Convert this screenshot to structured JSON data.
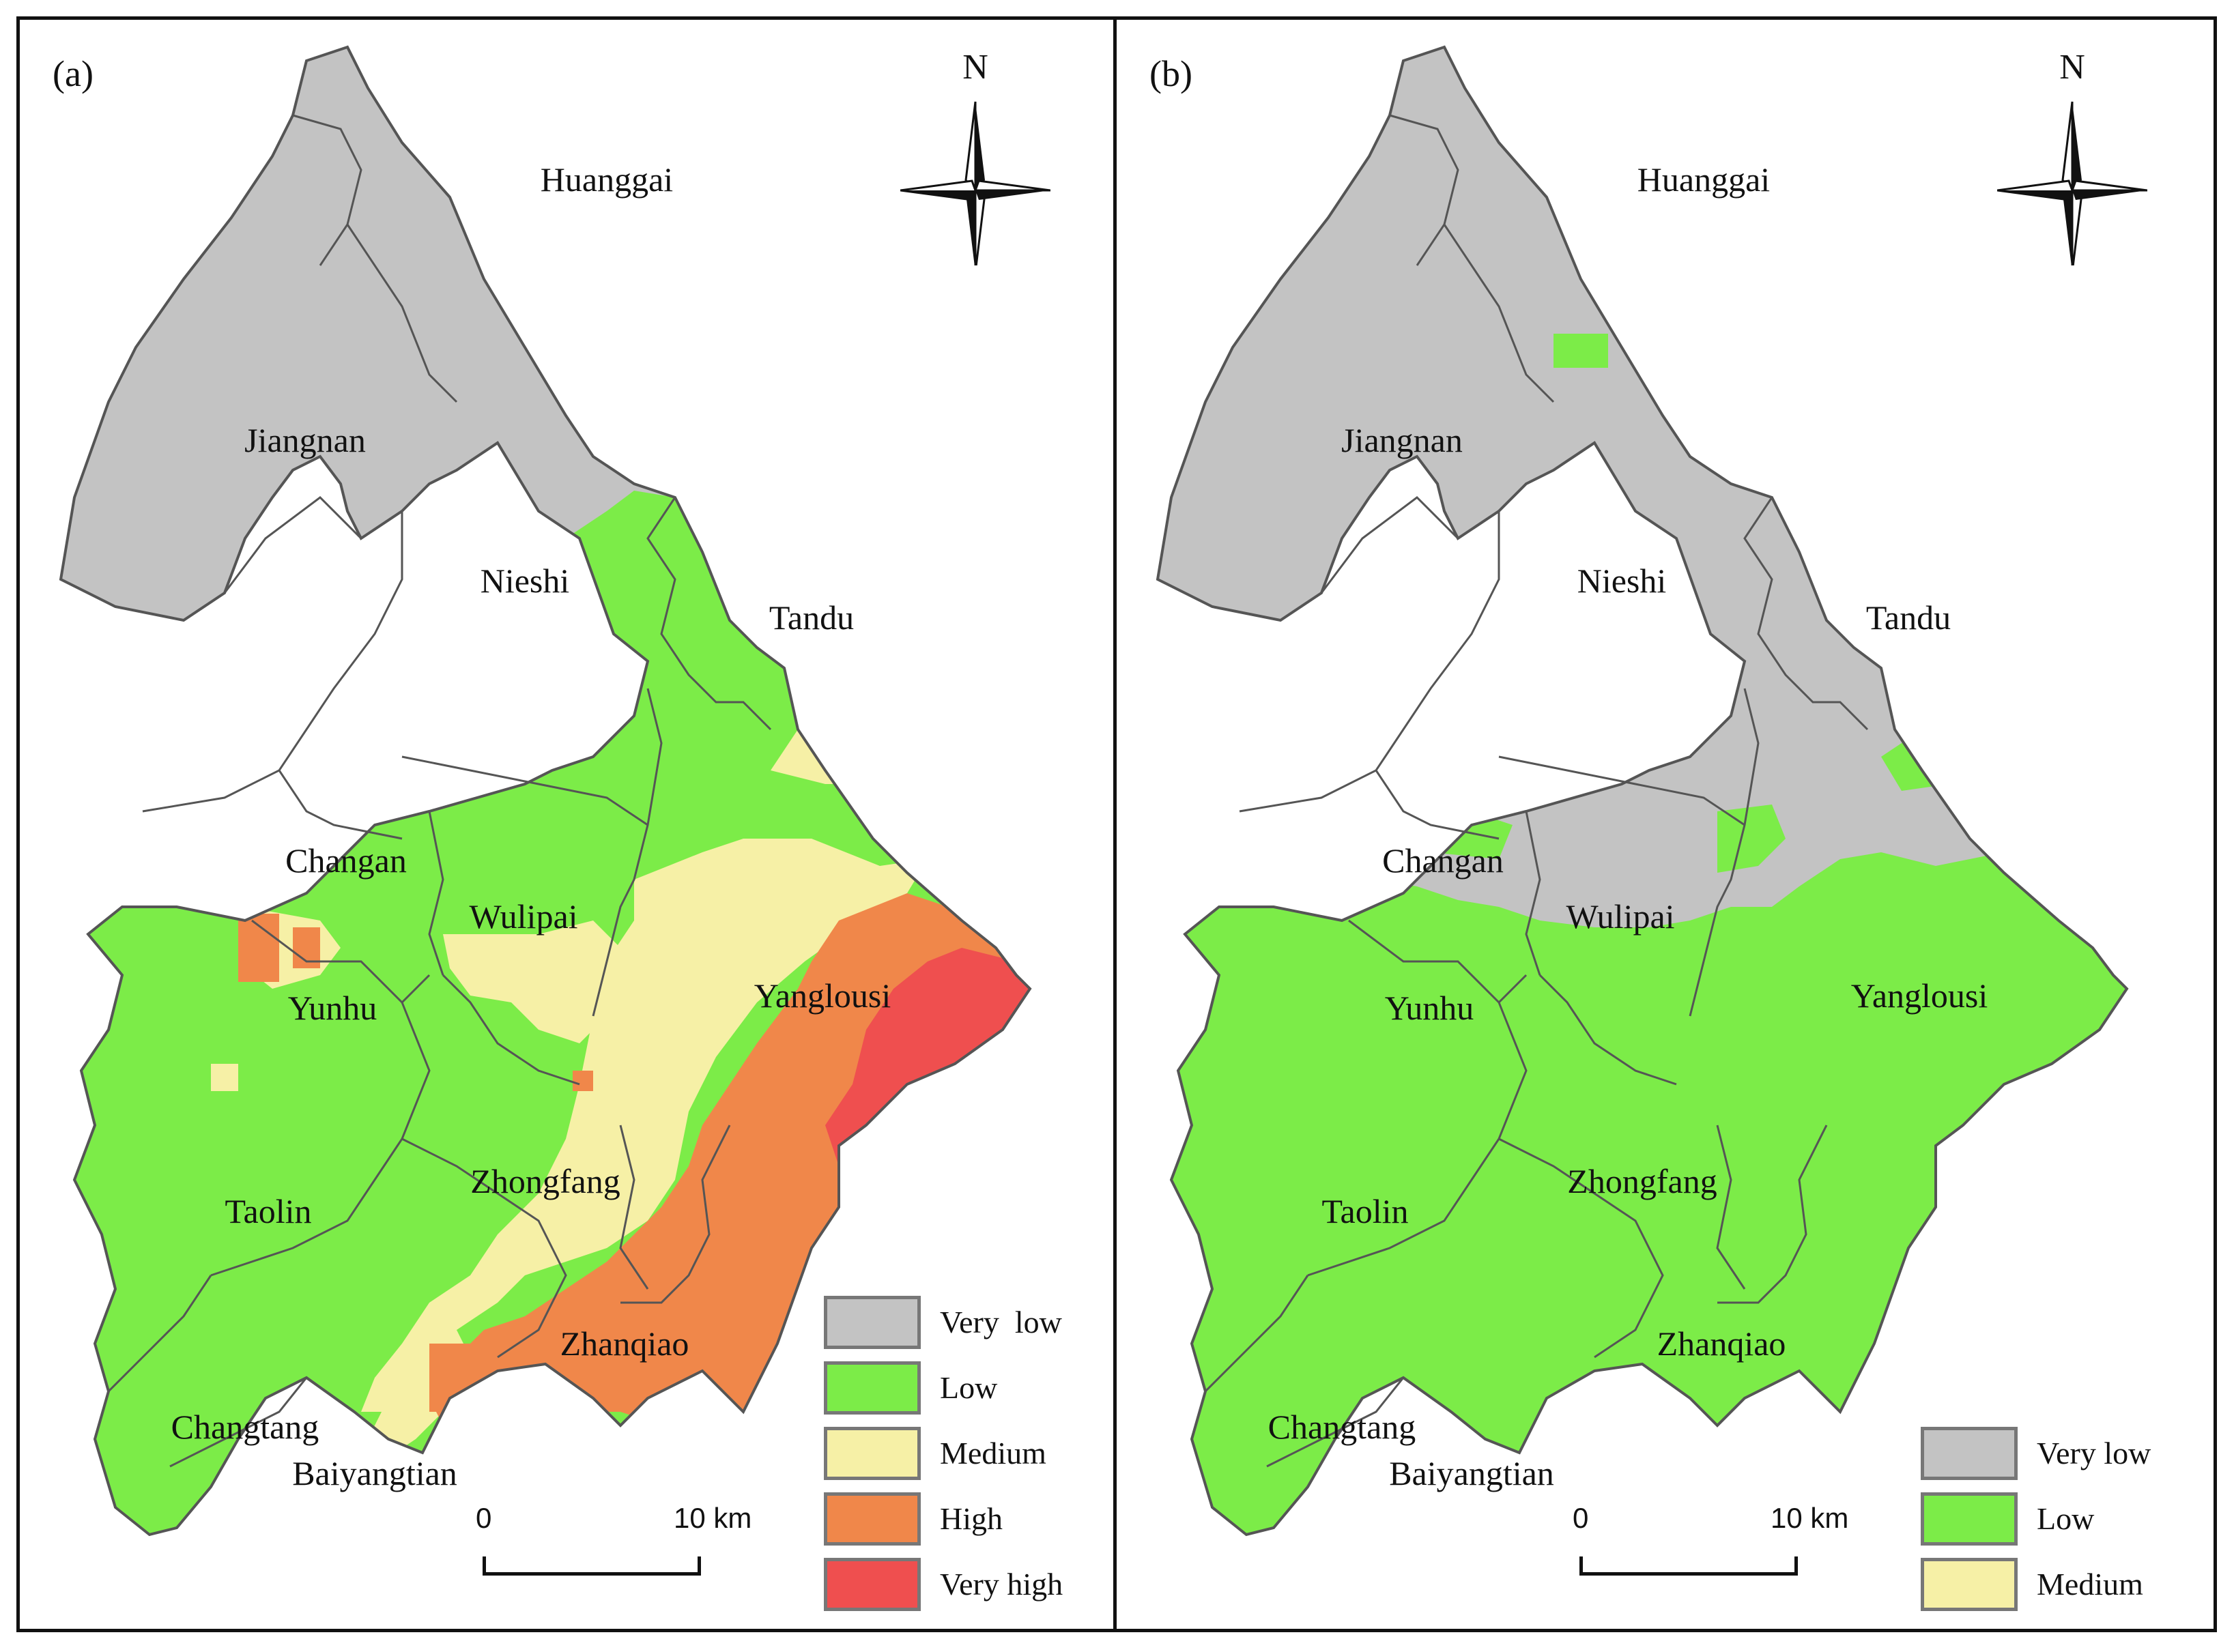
{
  "colors": {
    "very_low": "#c3c3c3",
    "low": "#7cec48",
    "medium": "#f6f0a6",
    "high": "#f0874a",
    "very_high": "#ef4f4f",
    "boundary": "#555555"
  },
  "panels": [
    {
      "label": "(a)",
      "north": "N",
      "towns": [
        "Huanggai",
        "Jiangnan",
        "Nieshi",
        "Tandu",
        "Changan",
        "Wulipai",
        "Yunhu",
        "Yanglousi",
        "Taolin",
        "Zhongfang",
        "Zhanqiao",
        "Changtang",
        "Baiyangtian"
      ],
      "scale": {
        "start": "0",
        "end": "10 km"
      },
      "legend": [
        {
          "label": "Very  low",
          "color": "very_low"
        },
        {
          "label": "Low",
          "color": "low"
        },
        {
          "label": "Medium",
          "color": "medium"
        },
        {
          "label": "High",
          "color": "high"
        },
        {
          "label": "Very high",
          "color": "very_high"
        }
      ]
    },
    {
      "label": "(b)",
      "north": "N",
      "towns": [
        "Huanggai",
        "Jiangnan",
        "Nieshi",
        "Tandu",
        "Changan",
        "Wulipai",
        "Yunhu",
        "Yanglousi",
        "Taolin",
        "Zhongfang",
        "Zhanqiao",
        "Changtang",
        "Baiyangtian"
      ],
      "scale": {
        "start": "0",
        "end": "10 km"
      },
      "legend": [
        {
          "label": "Very low",
          "color": "very_low"
        },
        {
          "label": "Low",
          "color": "low"
        },
        {
          "label": "Medium",
          "color": "medium"
        }
      ]
    }
  ]
}
